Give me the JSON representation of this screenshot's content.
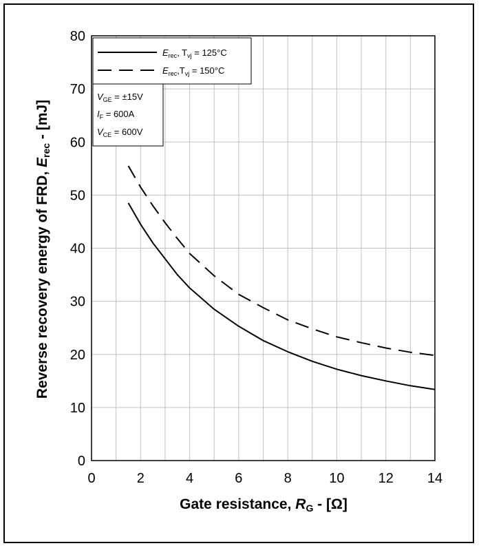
{
  "chart_data": {
    "type": "line",
    "xlabel": "Gate resistance, R_G - [Ω]",
    "ylabel": "Reverse recovery energy of FRD, E_rec - [mJ]",
    "xlim": [
      0,
      14
    ],
    "ylim": [
      0,
      80
    ],
    "x_ticks": [
      0,
      2,
      4,
      6,
      8,
      10,
      12,
      14
    ],
    "y_ticks": [
      0,
      10,
      20,
      30,
      40,
      50,
      60,
      70,
      80
    ],
    "grid": true,
    "legend_position": "top-left",
    "series": [
      {
        "name": "E_rec, T_vj = 125°C",
        "style": "solid",
        "x": [
          1.5,
          2,
          2.5,
          3,
          3.5,
          4,
          5,
          6,
          7,
          8,
          9,
          10,
          11,
          12,
          13,
          14
        ],
        "y": [
          48.5,
          44.5,
          41,
          38,
          35,
          32.5,
          28.5,
          25.3,
          22.6,
          20.5,
          18.7,
          17.2,
          16,
          15,
          14.1,
          13.4
        ]
      },
      {
        "name": "E_rec, T_vj = 150°C",
        "style": "dashed",
        "x": [
          1.5,
          2,
          2.5,
          3,
          3.5,
          4,
          5,
          6,
          7,
          8,
          9,
          10,
          11,
          12,
          13,
          14
        ],
        "y": [
          55.5,
          51.5,
          48,
          44.8,
          41.8,
          39,
          34.8,
          31.3,
          28.8,
          26.5,
          24.8,
          23.3,
          22.2,
          21.2,
          20.4,
          19.8
        ]
      }
    ],
    "legend": {
      "s1_main": "E",
      "s1_sub": "rec",
      "s1_mid": ", T",
      "s1_sub2": "vj",
      "s1_tail": " = 125°C",
      "s2_main": "E",
      "s2_sub": "rec",
      "s2_mid": ",T",
      "s2_sub2": "vj",
      "s2_tail": " = 150°C"
    },
    "conditions": {
      "l1_main": "V",
      "l1_sub": "GE",
      "l1_tail": " = ±15V",
      "l2_main": "I",
      "l2_sub": "F",
      "l2_tail": " = 600A",
      "l3_main": "V",
      "l3_sub": "CE",
      "l3_tail": " = 600V"
    },
    "xlabel_parts": {
      "pre": "Gate resistance, ",
      "main": "R",
      "sub": "G",
      "post": " - [Ω]"
    },
    "ylabel_parts": {
      "pre": "Reverse recovery energy of FRD, ",
      "main": "E",
      "sub": "rec",
      "post": " - [mJ]"
    }
  },
  "colors": {
    "line": "#000000",
    "grid": "#c0c0c0",
    "frame": "#000000",
    "background": "#ffffff"
  }
}
